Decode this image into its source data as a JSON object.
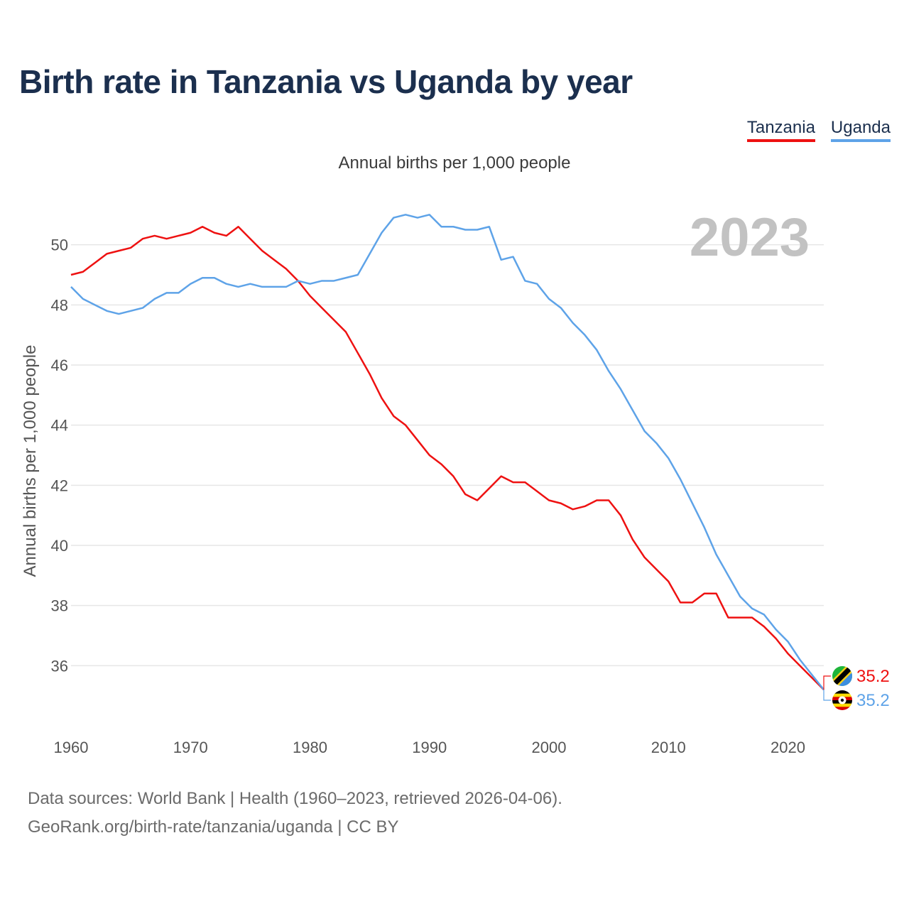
{
  "title": "Birth rate in Tanzania vs Uganda by year",
  "subtitle": "Annual births per 1,000 people",
  "legend": [
    {
      "label": "Tanzania",
      "color": "#ee1111"
    },
    {
      "label": "Uganda",
      "color": "#5ea3e8"
    }
  ],
  "year_label": "2023",
  "footer": {
    "line1": "Data sources: World Bank | Health (1960–2023, retrieved 2026-04-06).",
    "line2": "GeoRank.org/birth-rate/tanzania/uganda | CC BY"
  },
  "chart_data": {
    "type": "line",
    "title": "Birth rate in Tanzania vs Uganda by year",
    "ylabel": "Annual births per 1,000 people",
    "xlabel": "",
    "xlim": [
      1960,
      2023
    ],
    "ylim": [
      34,
      52
    ],
    "xticks": [
      1960,
      1970,
      1980,
      1990,
      2000,
      2010,
      2020
    ],
    "yticks": [
      36,
      38,
      40,
      42,
      44,
      46,
      48,
      50
    ],
    "x": [
      1960,
      1961,
      1962,
      1963,
      1964,
      1965,
      1966,
      1967,
      1968,
      1969,
      1970,
      1971,
      1972,
      1973,
      1974,
      1975,
      1976,
      1977,
      1978,
      1979,
      1980,
      1981,
      1982,
      1983,
      1984,
      1985,
      1986,
      1987,
      1988,
      1989,
      1990,
      1991,
      1992,
      1993,
      1994,
      1995,
      1996,
      1997,
      1998,
      1999,
      2000,
      2001,
      2002,
      2003,
      2004,
      2005,
      2006,
      2007,
      2008,
      2009,
      2010,
      2011,
      2012,
      2013,
      2014,
      2015,
      2016,
      2017,
      2018,
      2019,
      2020,
      2021,
      2022,
      2023
    ],
    "series": [
      {
        "name": "Tanzania",
        "color": "#ee1111",
        "values": [
          49.0,
          49.1,
          49.4,
          49.7,
          49.8,
          49.9,
          50.2,
          50.3,
          50.2,
          50.3,
          50.4,
          50.6,
          50.4,
          50.3,
          50.6,
          50.2,
          49.8,
          49.5,
          49.2,
          48.8,
          48.3,
          47.9,
          47.5,
          47.1,
          46.4,
          45.7,
          44.9,
          44.3,
          44.0,
          43.5,
          43.0,
          42.7,
          42.3,
          41.7,
          41.5,
          41.9,
          42.3,
          42.1,
          42.1,
          41.8,
          41.5,
          41.4,
          41.2,
          41.3,
          41.5,
          41.5,
          41.0,
          40.2,
          39.6,
          39.2,
          38.8,
          38.1,
          38.1,
          38.4,
          38.4,
          37.6,
          37.6,
          37.6,
          37.3,
          36.9,
          36.4,
          36.0,
          35.6,
          35.2
        ],
        "end_label": "35.2"
      },
      {
        "name": "Uganda",
        "color": "#5ea3e8",
        "values": [
          48.6,
          48.2,
          48.0,
          47.8,
          47.7,
          47.8,
          47.9,
          48.2,
          48.4,
          48.4,
          48.7,
          48.9,
          48.9,
          48.7,
          48.6,
          48.7,
          48.6,
          48.6,
          48.6,
          48.8,
          48.7,
          48.8,
          48.8,
          48.9,
          49.0,
          49.7,
          50.4,
          50.9,
          51.0,
          50.9,
          51.0,
          50.6,
          50.6,
          50.5,
          50.5,
          50.6,
          49.5,
          49.6,
          48.8,
          48.7,
          48.2,
          47.9,
          47.4,
          47.0,
          46.5,
          45.8,
          45.2,
          44.5,
          43.8,
          43.4,
          42.9,
          42.2,
          41.4,
          40.6,
          39.7,
          39.0,
          38.3,
          37.9,
          37.7,
          37.2,
          36.8,
          36.2,
          35.7,
          35.2
        ],
        "end_label": "35.2"
      }
    ]
  }
}
